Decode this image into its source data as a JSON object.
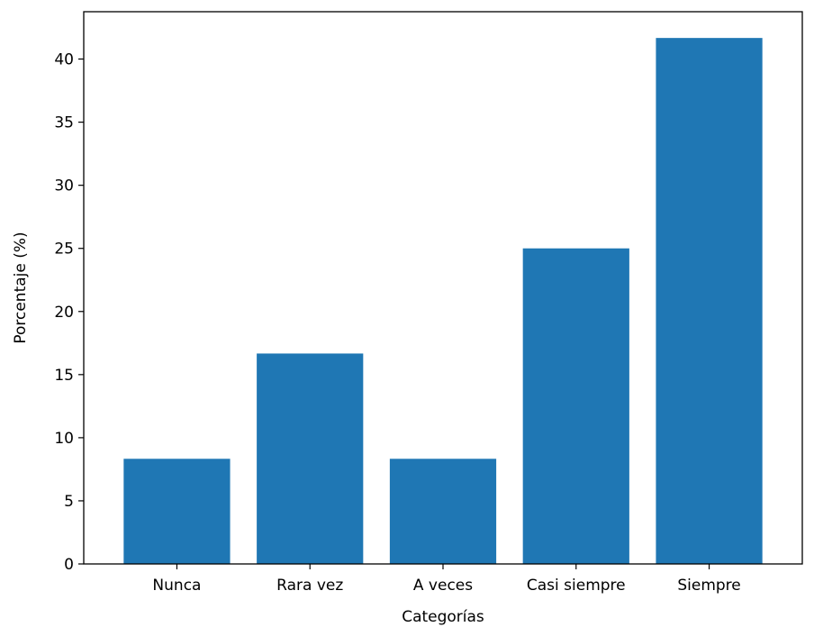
{
  "chart_data": {
    "type": "bar",
    "categories": [
      "Nunca",
      "Rara vez",
      "A veces",
      "Casi siempre",
      "Siempre"
    ],
    "values": [
      8.33,
      16.67,
      8.33,
      25.0,
      41.67
    ],
    "xlabel": "Categorías",
    "ylabel": "Porcentaje (%)",
    "ylim": [
      0,
      43.75
    ],
    "yticks": [
      0,
      5,
      10,
      15,
      20,
      25,
      30,
      35,
      40
    ],
    "bar_color": "#1f77b4",
    "grid": false
  }
}
